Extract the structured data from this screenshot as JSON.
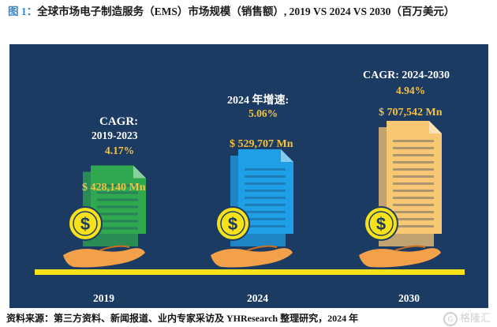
{
  "title": {
    "prefix": "图 1：",
    "text": "全球市场电子制造服务（EMS）市场规模（销售额）, 2019 VS 2024 VS 2030（百万美元）"
  },
  "chart_data": {
    "type": "bar",
    "categories": [
      "2019",
      "2024",
      "2030"
    ],
    "values": [
      428140,
      529707,
      707542
    ],
    "value_labels": [
      "$ 428,140 Mn",
      "$ 529,707 Mn",
      "$ 707,542 Mn"
    ],
    "annotations": [
      {
        "lines": [
          "CAGR:",
          "2019-2023"
        ],
        "value": "4.17%"
      },
      {
        "lines": [
          "2024 年增速:"
        ],
        "value": "5.06%"
      },
      {
        "lines": [
          "CAGR: 2024-2030"
        ],
        "value": "4.94%"
      }
    ],
    "colors": {
      "background": "#1c3b63",
      "bar_2019": "#2fa84f",
      "bar_2024": "#1fa0e6",
      "bar_2030": "#f7c774",
      "baseline": "#f7e21a",
      "accent_text": "#f5c242",
      "hand": "#f3a04a",
      "coin": "#f7e21a"
    }
  },
  "source": "资料来源：第三方资料、新闻报道、业内专家采访及 YHResearch 整理研究，2024 年",
  "watermark": "格隆汇"
}
